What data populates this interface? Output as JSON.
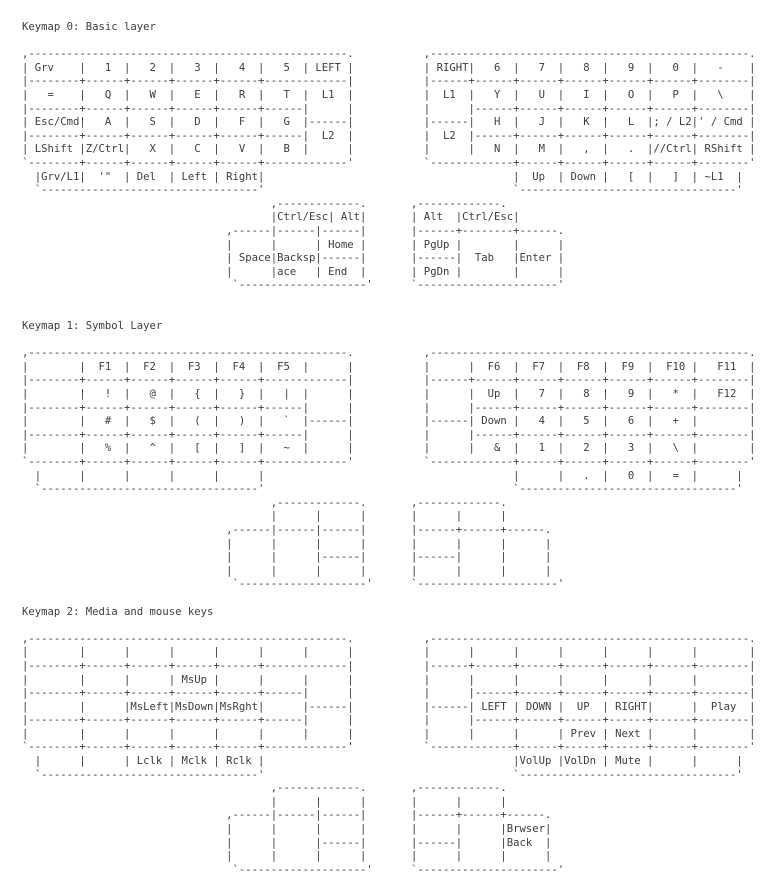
{
  "colors": {
    "background": "#ffffff",
    "text": "#3d3d3d"
  },
  "sections": [
    {
      "title": "Keymap 0: Basic layer",
      "art": [
        ",--------------------------------------------------.           ,--------------------------------------------------.",
        "| Grv    |   1  |   2  |   3  |   4  |   5  | LEFT |           | RIGHT|   6  |   7  |   8  |   9  |   0  |   -    |",
        "|--------+------+------+------+------+-------------|           |------+------+------+------+------+------+--------|",
        "|   =    |   Q  |   W  |   E  |   R  |   T  |  L1  |           |  L1  |   Y  |   U  |   I  |   O  |   P  |   \\    |",
        "|--------+------+------+------+------+------|      |           |      |------+------+------+------+------+--------|",
        "| Esc/Cmd|   A  |   S  |   D  |   F  |   G  |------|           |------|   H  |   J  |   K  |   L  |; / L2|' / Cmd |",
        "|--------+------+------+------+------+------|  L2  |           |  L2  |------+------+------+------+------+--------|",
        "| LShift |Z/Ctrl|   X  |   C  |   V  |   B  |      |           |      |   N  |   M  |   ,  |   .  |//Ctrl| RShift |",
        "`--------+------+------+------+------+-------------'           `-------------+------+------+------+------+--------'",
        "  |Grv/L1|  '\"  | Del  | Left | Right|                                       |  Up  | Down |   [  |   ]  | ~L1  |",
        "  `----------------------------------'                                       `----------------------------------'",
        "                                       ,-------------.       ,-------------.",
        "                                       |Ctrl/Esc| Alt|       | Alt  |Ctrl/Esc|",
        "                                ,------|------|------|       |------+--------+------.",
        "                                |      |      | Home |       | PgUp |        |      |",
        "                                | Space|Backsp|------|       |------|  Tab   |Enter |",
        "                                |      |ace   | End  |       | PgDn |        |      |",
        "                                 `--------------------'      `----------------------'"
      ]
    },
    {
      "title": "Keymap 1: Symbol Layer",
      "art": [
        ",--------------------------------------------------.           ,--------------------------------------------------.",
        "|        |  F1  |  F2  |  F3  |  F4  |  F5  |      |           |      |  F6  |  F7  |  F8  |  F9  |  F10 |   F11  |",
        "|--------+------+------+------+------+-------------|           |------+------+------+------+------+------+--------|",
        "|        |   !  |   @  |   {  |   }  |   |  |      |           |      |  Up  |   7  |   8  |   9  |   *  |   F12  |",
        "|--------+------+------+------+------+------|      |           |      |------+------+------+------+------+--------|",
        "|        |   #  |   $  |   (  |   )  |   `  |------|           |------| Down |   4  |   5  |   6  |   +  |        |",
        "|--------+------+------+------+------+------|      |           |      |------+------+------+------+------+--------|",
        "|        |   %  |   ^  |   [  |   ]  |   ~  |      |           |      |   &  |   1  |   2  |   3  |   \\  |        |",
        "`--------+------+------+------+------+-------------'           `-------------+------+------+------+------+--------'",
        "  |      |      |      |      |      |                                       |      |   .  |   0  |   =  |      |",
        "  `----------------------------------'                                       `----------------------------------'",
        "                                       ,-------------.       ,-------------.",
        "                                       |      |      |       |      |      |",
        "                                ,------|------|------|       |------+------+------.",
        "                                |      |      |      |       |      |      |      |",
        "                                |      |      |------|       |------|      |      |",
        "                                |      |      |      |       |      |      |      |",
        "                                 `--------------------'      `----------------------'"
      ]
    },
    {
      "title": "Keymap 2: Media and mouse keys",
      "art": [
        ",--------------------------------------------------.           ,--------------------------------------------------.",
        "|        |      |      |      |      |      |      |           |      |      |      |      |      |      |        |",
        "|--------+------+------+------+------+-------------|           |------+------+------+------+------+------+--------|",
        "|        |      |      | MsUp |      |      |      |           |      |      |      |      |      |      |        |",
        "|--------+------+------+------+------+------|      |           |      |------+------+------+------+------+--------|",
        "|        |      |MsLeft|MsDown|MsRght|      |------|           |------| LEFT | DOWN |  UP  | RIGHT|      |  Play  |",
        "|--------+------+------+------+------+------|      |           |      |------+------+------+------+------+--------|",
        "|        |      |      |      |      |      |      |           |      |      |      | Prev | Next |      |        |",
        "`--------+------+------+------+------+-------------'           `-------------+------+------+------+------+--------'",
        "  |      |      | Lclk | Mclk | Rclk |                                       |VolUp |VolDn | Mute |      |      |",
        "  `----------------------------------'                                       `----------------------------------'",
        "                                       ,-------------.       ,-------------.",
        "                                       |      |      |       |      |      |",
        "                                ,------|------|------|       |------+------+------.",
        "                                |      |      |      |       |      |      |Brwser|",
        "                                |      |      |------|       |------|      |Back  |",
        "                                |      |      |      |       |      |      |      |",
        "                                 `--------------------'      `----------------------'"
      ]
    }
  ]
}
